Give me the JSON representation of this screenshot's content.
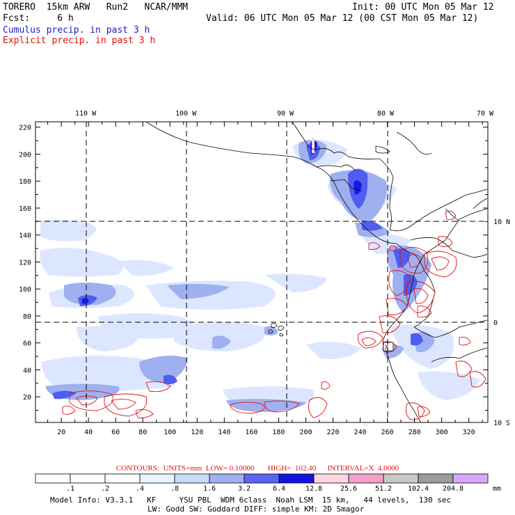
{
  "header": {
    "title": "TORERO  15km ARW   Run2   NCAR/MMM",
    "forecast": "Fcst:     6 h",
    "init": "Init: 00 UTC Mon 05 Mar 12",
    "valid": "Valid: 06 UTC Mon 05 Mar 12 (00 CST Mon 05 Mar 12)",
    "field_cumulus": "Cumulus precip. in past 3 h",
    "field_explicit": "Explicit precip. in past 3 h"
  },
  "axes": {
    "x_ticks": [
      "20",
      "40",
      "60",
      "80",
      "100",
      "120",
      "140",
      "160",
      "180",
      "200",
      "220",
      "240",
      "260",
      "280",
      "300",
      "320"
    ],
    "y_ticks": [
      "20",
      "40",
      "60",
      "80",
      "100",
      "120",
      "140",
      "160",
      "180",
      "200",
      "220"
    ],
    "lon_labels": [
      "110 W",
      "100 W",
      "90 W",
      "80 W",
      "70 W"
    ],
    "lat_labels": [
      "10 N",
      "0",
      "10 S"
    ]
  },
  "colors": {
    "shade_light": "#dde6ff",
    "shade_mid": "#9fb0f0",
    "shade_dark": "#4f5ef0",
    "shade_deep": "#1818e8",
    "contour": "#e01010"
  },
  "contour_info": "CONTOURS:  UNITS=mm  LOW= 0.10000       HIGH=  102.40      INTERVAL=X  4.0000",
  "colorbar": {
    "values": [
      ".1",
      ".2",
      ".4",
      ".8",
      "1.6",
      "3.2",
      "6.4",
      "12.8",
      "25.6",
      "51.2",
      "102.4",
      "204.8"
    ],
    "unit": "mm",
    "colors": [
      "#ffffff",
      "#ffffff",
      "#ffffff",
      "#e8f4ff",
      "#c8dcf8",
      "#9fb0f0",
      "#5a66f0",
      "#1414e0",
      "#ffd8e0",
      "#f5a0c8",
      "#c8c8c8",
      "#9c9c9c",
      "#d8a8f8"
    ]
  },
  "model_info": {
    "line1": "Model Info: V3.3.1   KF     YSU PBL  WDM 6class  Noah LSM  15 km,   44 levels,  130 sec",
    "line2": "LW: Godd SW: Goddard DIFF: simple KM: 2D Smagor"
  }
}
